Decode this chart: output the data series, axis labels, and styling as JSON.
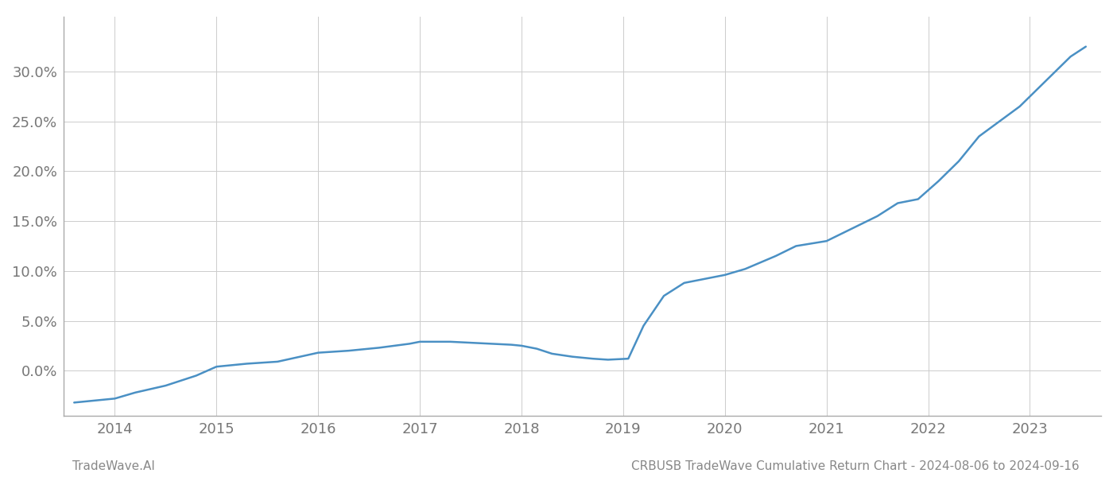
{
  "title": "",
  "xlabel": "",
  "ylabel": "",
  "footer_left": "TradeWave.AI",
  "footer_right": "CRBUSB TradeWave Cumulative Return Chart - 2024-08-06 to 2024-09-16",
  "line_color": "#4a90c4",
  "background_color": "#ffffff",
  "grid_color": "#cccccc",
  "x_values": [
    2013.6,
    2014.0,
    2014.2,
    2014.5,
    2014.8,
    2015.0,
    2015.3,
    2015.6,
    2016.0,
    2016.3,
    2016.6,
    2016.9,
    2017.0,
    2017.3,
    2017.5,
    2017.7,
    2017.9,
    2018.0,
    2018.15,
    2018.3,
    2018.5,
    2018.7,
    2018.85,
    2019.05,
    2019.2,
    2019.4,
    2019.6,
    2019.8,
    2020.0,
    2020.2,
    2020.5,
    2020.7,
    2021.0,
    2021.2,
    2021.5,
    2021.7,
    2021.9,
    2022.1,
    2022.3,
    2022.5,
    2022.7,
    2022.9,
    2023.0,
    2023.2,
    2023.4,
    2023.55
  ],
  "y_values": [
    -3.2,
    -2.8,
    -2.2,
    -1.5,
    -0.5,
    0.4,
    0.7,
    0.9,
    1.8,
    2.0,
    2.3,
    2.7,
    2.9,
    2.9,
    2.8,
    2.7,
    2.6,
    2.5,
    2.2,
    1.7,
    1.4,
    1.2,
    1.1,
    1.2,
    4.5,
    7.5,
    8.8,
    9.2,
    9.6,
    10.2,
    11.5,
    12.5,
    13.0,
    14.0,
    15.5,
    16.8,
    17.2,
    19.0,
    21.0,
    23.5,
    25.0,
    26.5,
    27.5,
    29.5,
    31.5,
    32.5
  ],
  "yticks": [
    0.0,
    5.0,
    10.0,
    15.0,
    20.0,
    25.0,
    30.0
  ],
  "ytick_labels": [
    "0.0%",
    "5.0%",
    "10.0%",
    "15.0%",
    "20.0%",
    "25.0%",
    "30.0%"
  ],
  "xticks": [
    2014,
    2015,
    2016,
    2017,
    2018,
    2019,
    2020,
    2021,
    2022,
    2023
  ],
  "xlim": [
    2013.5,
    2023.7
  ],
  "ylim": [
    -4.5,
    35.5
  ],
  "line_width": 1.8
}
